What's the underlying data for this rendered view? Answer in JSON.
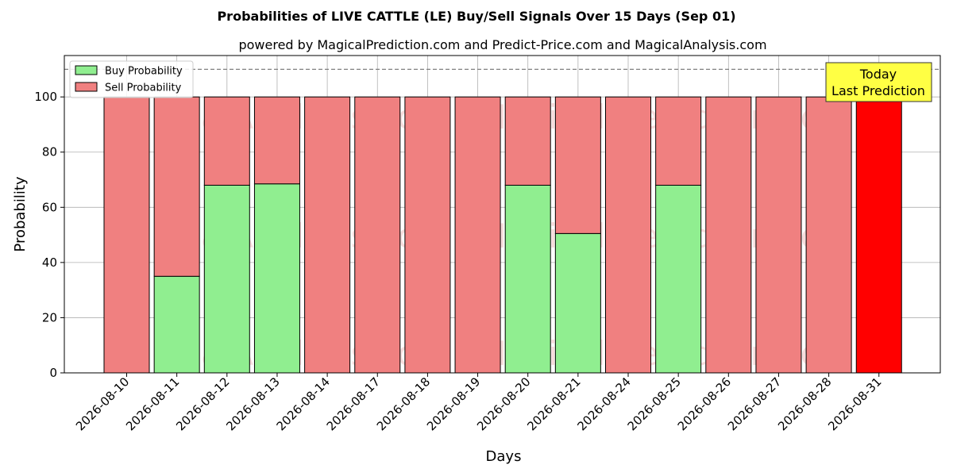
{
  "chart_data": {
    "type": "bar",
    "stacked": true,
    "title": "Probabilities of LIVE CATTLE (LE) Buy/Sell Signals Over 15 Days (Sep 01)",
    "subtitle": "powered by MagicalPrediction.com and Predict-Price.com and MagicalAnalysis.com",
    "xlabel": "Days",
    "ylabel": "Probability",
    "ylim": [
      0,
      115
    ],
    "yticks": [
      0,
      20,
      40,
      60,
      80,
      100
    ],
    "grid": true,
    "legend_position": "top-left",
    "reference_line": 110,
    "categories": [
      "2026-08-10",
      "2026-08-11",
      "2026-08-12",
      "2026-08-13",
      "2026-08-14",
      "2026-08-17",
      "2026-08-18",
      "2026-08-19",
      "2026-08-20",
      "2026-08-21",
      "2026-08-24",
      "2026-08-25",
      "2026-08-26",
      "2026-08-27",
      "2026-08-28",
      "2026-08-31"
    ],
    "series": [
      {
        "name": "Buy Probability",
        "color": "#90ee90",
        "values": [
          0,
          35,
          68,
          68.5,
          0,
          0,
          0,
          0,
          68,
          50.5,
          0,
          68,
          0,
          0,
          0,
          0
        ]
      },
      {
        "name": "Sell Probability",
        "color": "#f08080",
        "values": [
          100,
          65,
          32,
          31.5,
          100,
          100,
          100,
          100,
          32,
          49.5,
          100,
          32,
          100,
          100,
          100,
          100
        ]
      }
    ],
    "highlight": {
      "index": 15,
      "color": "#ff0000"
    },
    "annotation": {
      "lines": [
        "Today",
        "Last Prediction"
      ],
      "background": "#ffff44"
    },
    "watermarks": [
      "MagicalAnalysis.com",
      "MagicalPrediction.com"
    ]
  }
}
